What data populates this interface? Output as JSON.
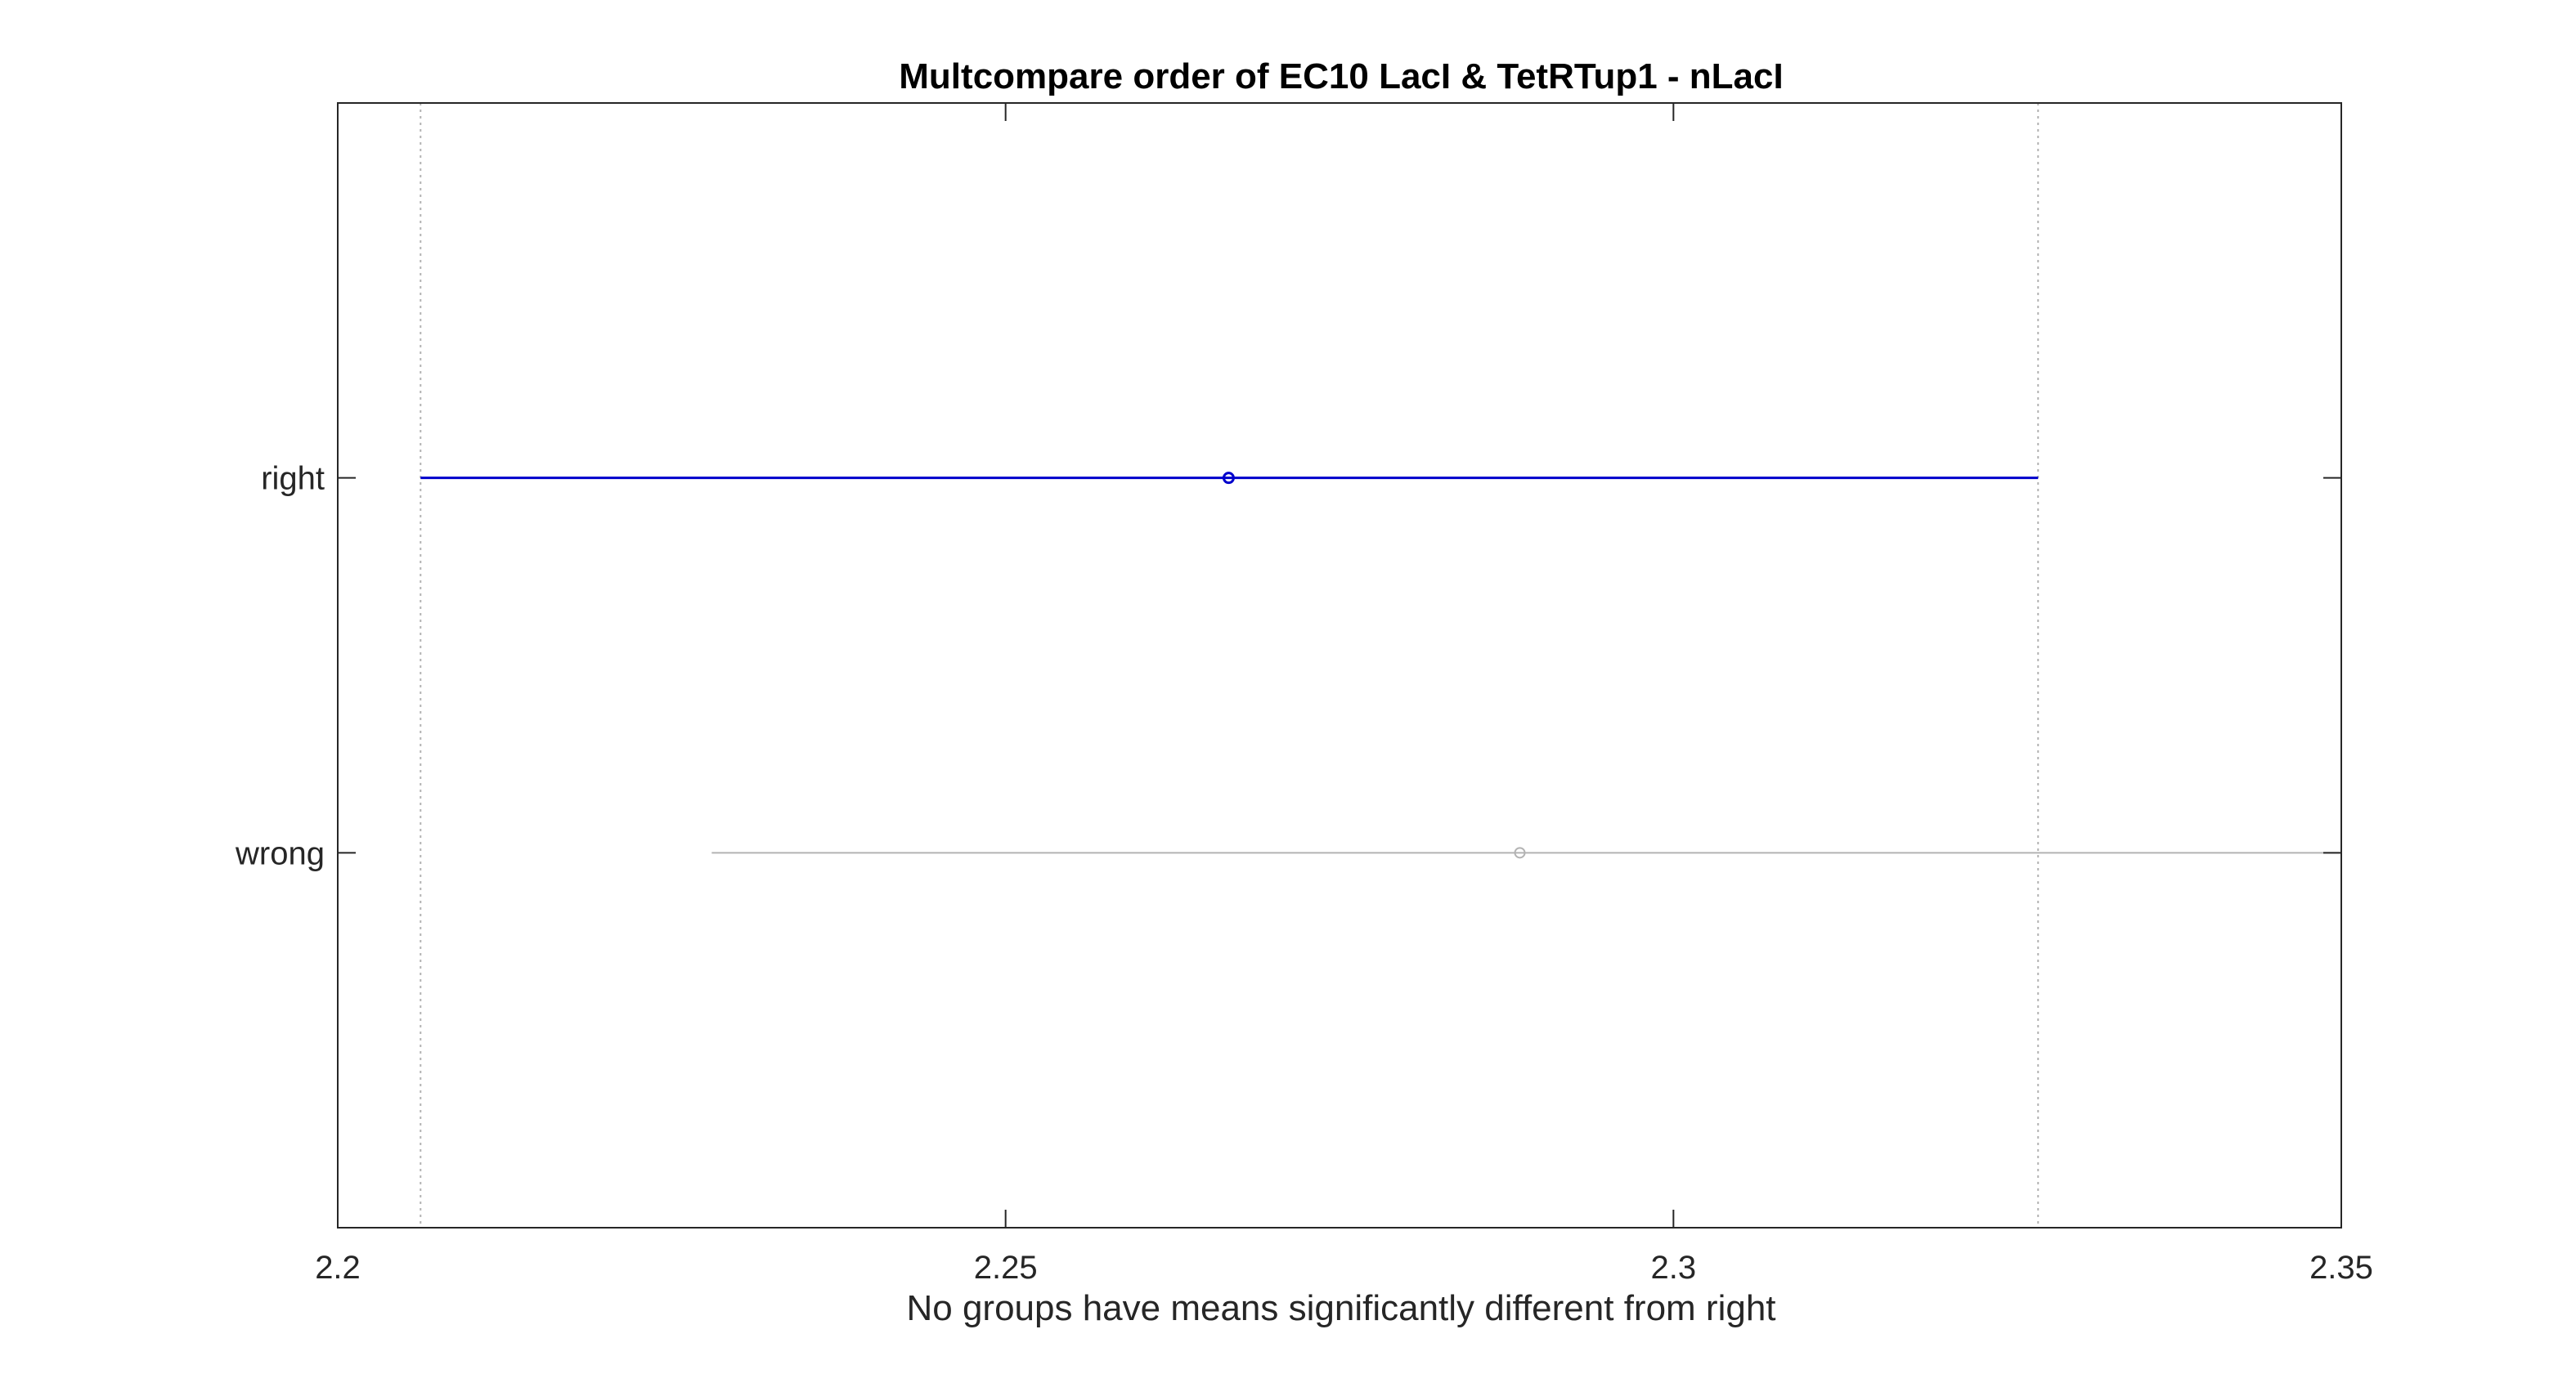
{
  "chart_data": {
    "type": "interval",
    "title": "Multcompare order of EC10 LacI & TetRTup1 - nLacI",
    "subtitle": "",
    "xlabel": "No groups have means significantly different from right",
    "ylabel": "",
    "xlim": [
      2.2,
      2.35
    ],
    "xticks": [
      "2.2",
      "2.25",
      "2.3",
      "2.35"
    ],
    "xtick_values": [
      2.2,
      2.25,
      2.3,
      2.35
    ],
    "categories": [
      "right",
      "wrong"
    ],
    "grid": "off",
    "selected_group": "right",
    "reference_lines": [
      2.2062,
      2.3273
    ],
    "groups": [
      {
        "label": "right",
        "mean": 2.2667,
        "lower": 2.2062,
        "upper": 2.3273,
        "color": "#0000cc",
        "selected": true
      },
      {
        "label": "wrong",
        "mean": 2.2885,
        "lower": 2.228,
        "upper": 2.35,
        "color": "#b3b3b3",
        "selected": false
      }
    ]
  }
}
